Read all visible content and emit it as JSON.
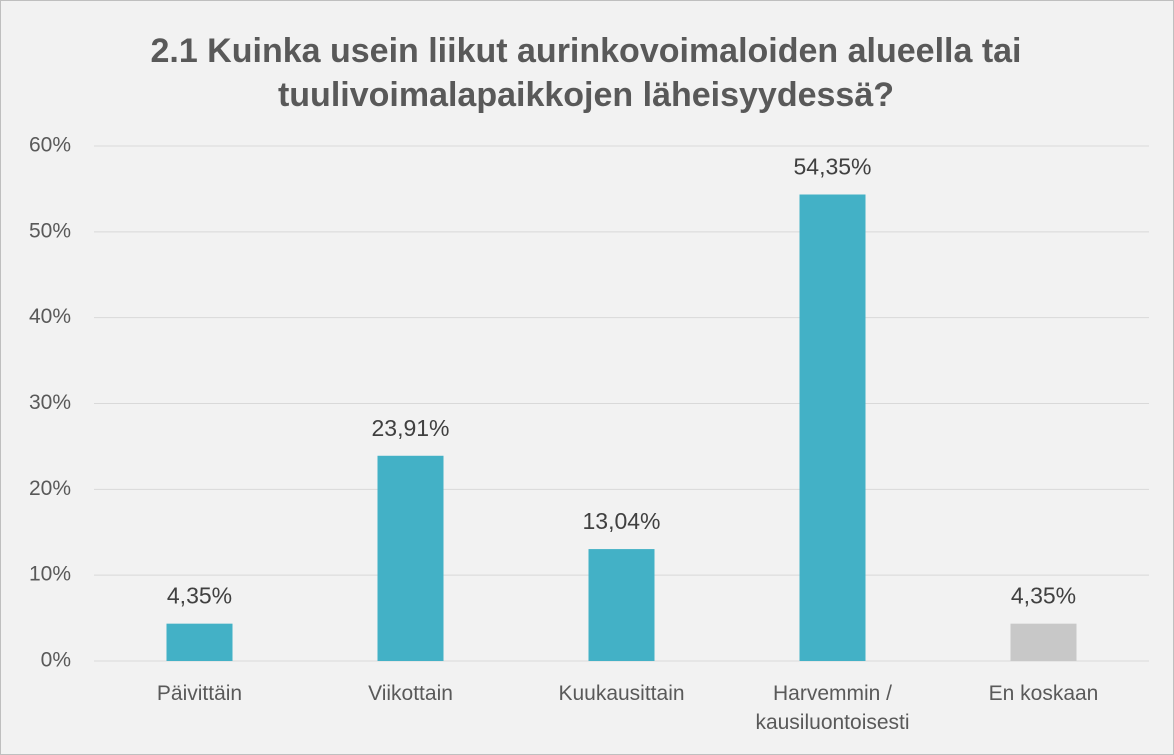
{
  "chart_data": {
    "type": "bar",
    "title": "2.1 Kuinka usein liikut aurinkovoimaloiden alueella tai tuulivoimalapaikkojen läheisyydessä?",
    "categories": [
      "Päivittäin",
      "Viikottain",
      "Kuukausittain",
      "Harvemmin / kausiluontoisesti",
      "En koskaan"
    ],
    "values": [
      4.35,
      23.91,
      13.04,
      54.35,
      4.35
    ],
    "value_labels": [
      "4,35%",
      "23,91%",
      "13,04%",
      "54,35%",
      "4,35%"
    ],
    "colors": [
      "#43b1c6",
      "#43b1c6",
      "#43b1c6",
      "#43b1c6",
      "#c8c8c8"
    ],
    "ylim": [
      0,
      60
    ],
    "yticks": [
      {
        "value": 0,
        "label": "0%"
      },
      {
        "value": 10,
        "label": "10%"
      },
      {
        "value": 20,
        "label": "20%"
      },
      {
        "value": 30,
        "label": "30%"
      },
      {
        "value": 40,
        "label": "40%"
      },
      {
        "value": 50,
        "label": "50%"
      },
      {
        "value": 60,
        "label": "60%"
      }
    ],
    "grid": true
  }
}
